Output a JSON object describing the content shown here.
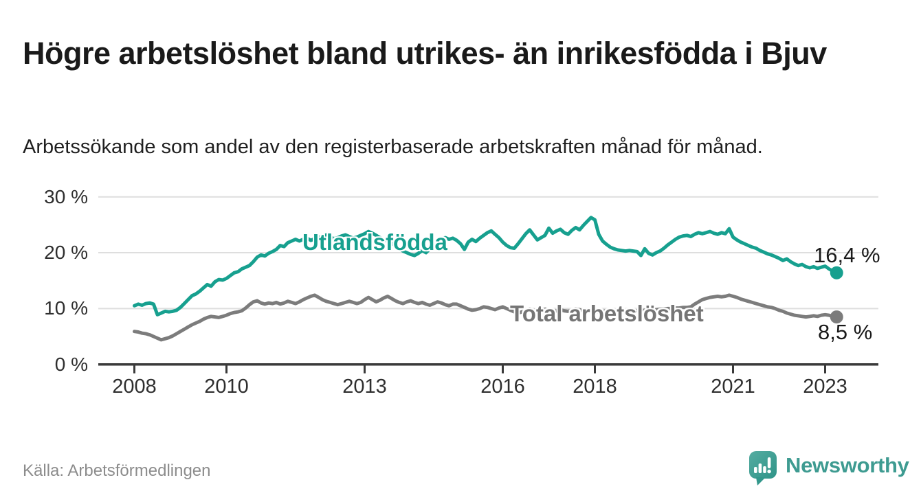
{
  "header": {
    "title": "Högre arbetslöshet bland utrikes- än inrikesfödda i Bjuv",
    "subtitle": "Arbetssökande som andel av den registerbaserade arbetskraften månad för månad."
  },
  "footer": {
    "source": "Källa: Arbetsförmedlingen",
    "logo_text": "Newsworthy",
    "logo_icon": "speech-bubble-bar-chart-icon"
  },
  "colors": {
    "foreign_born_line": "#17A08F",
    "total_line": "#7C7C7C",
    "grid": "#DEDEDE",
    "axis": "#3A3A3A",
    "text": "#1A1A1A",
    "muted_text": "#8C8C8C",
    "logo_teal": "#3E9B91"
  },
  "chart_data": {
    "type": "line",
    "x_unit": "month",
    "x_start": "2008-01",
    "x_end": "2023-04",
    "ylim": [
      0,
      30
    ],
    "grid": "horizontal-only",
    "y_ticks": [
      0,
      10,
      20,
      30
    ],
    "y_tick_labels": [
      "0 %",
      "10 %",
      "20 %",
      "30 %"
    ],
    "x_tick_years": [
      2008,
      2010,
      2013,
      2016,
      2018,
      2021,
      2023
    ],
    "x_tick_labels": [
      "2008",
      "2010",
      "2013",
      "2016",
      "2018",
      "2021",
      "2023"
    ],
    "series": [
      {
        "name": "Utlandsfödda",
        "color": "#17A08F",
        "end_value": 16.4,
        "end_label": "16,4 %",
        "values": [
          10.5,
          10.8,
          10.6,
          10.9,
          11.0,
          10.8,
          8.9,
          9.2,
          9.5,
          9.4,
          9.5,
          9.7,
          10.2,
          10.9,
          11.6,
          12.3,
          12.6,
          13.1,
          13.7,
          14.3,
          14.0,
          14.8,
          15.2,
          15.1,
          15.4,
          15.9,
          16.4,
          16.6,
          17.1,
          17.4,
          17.7,
          18.4,
          19.2,
          19.6,
          19.4,
          19.9,
          20.2,
          20.6,
          21.3,
          21.1,
          21.8,
          22.1,
          22.4,
          22.1,
          22.4,
          22.6,
          22.2,
          22.5,
          22.7,
          22.9,
          23.2,
          22.8,
          22.5,
          22.7,
          23.0,
          23.2,
          22.9,
          22.6,
          22.8,
          23.1,
          23.4,
          23.8,
          23.5,
          23.1,
          22.7,
          22.4,
          22.1,
          21.7,
          21.3,
          20.8,
          20.3,
          20.0,
          19.7,
          19.5,
          19.9,
          20.4,
          20.0,
          20.7,
          21.3,
          21.9,
          22.4,
          22.7,
          22.4,
          22.6,
          22.2,
          21.6,
          20.6,
          21.9,
          22.4,
          22.0,
          22.6,
          23.1,
          23.6,
          23.9,
          23.3,
          22.7,
          21.9,
          21.3,
          20.9,
          20.8,
          21.6,
          22.5,
          23.4,
          24.1,
          23.2,
          22.3,
          22.7,
          23.1,
          24.4,
          23.5,
          23.9,
          24.2,
          23.6,
          23.3,
          24.0,
          24.5,
          24.1,
          24.9,
          25.6,
          26.3,
          25.9,
          23.3,
          22.1,
          21.5,
          21.0,
          20.7,
          20.5,
          20.4,
          20.3,
          20.4,
          20.3,
          20.2,
          19.5,
          20.7,
          19.9,
          19.6,
          20.0,
          20.3,
          20.8,
          21.4,
          21.9,
          22.4,
          22.8,
          23.0,
          23.1,
          22.9,
          23.3,
          23.6,
          23.4,
          23.6,
          23.8,
          23.5,
          23.3,
          23.6,
          23.4,
          24.3,
          22.8,
          22.3,
          21.9,
          21.6,
          21.3,
          21.0,
          20.8,
          20.4,
          20.1,
          19.8,
          19.6,
          19.3,
          19.0,
          18.6,
          18.9,
          18.4,
          18.0,
          17.7,
          17.9,
          17.5,
          17.3,
          17.5,
          17.2,
          17.4,
          17.6,
          17.1,
          16.7,
          16.4
        ]
      },
      {
        "name": "Total arbetslöshet",
        "color": "#7C7C7C",
        "end_value": 8.5,
        "end_label": "8,5 %",
        "values": [
          5.9,
          5.8,
          5.6,
          5.5,
          5.3,
          5.0,
          4.7,
          4.4,
          4.6,
          4.8,
          5.1,
          5.5,
          5.9,
          6.3,
          6.7,
          7.1,
          7.4,
          7.7,
          8.1,
          8.4,
          8.6,
          8.5,
          8.4,
          8.6,
          8.8,
          9.1,
          9.3,
          9.4,
          9.6,
          10.1,
          10.7,
          11.2,
          11.4,
          11.0,
          10.8,
          11.0,
          10.9,
          11.1,
          10.8,
          11.0,
          11.3,
          11.1,
          10.9,
          11.2,
          11.6,
          11.9,
          12.2,
          12.4,
          12.0,
          11.6,
          11.3,
          11.1,
          10.9,
          10.7,
          10.9,
          11.1,
          11.3,
          11.1,
          10.9,
          11.1,
          11.6,
          12.0,
          11.6,
          11.2,
          11.5,
          11.9,
          12.2,
          11.8,
          11.4,
          11.1,
          10.9,
          11.2,
          11.4,
          11.1,
          10.9,
          11.1,
          10.8,
          10.6,
          10.9,
          11.2,
          11.0,
          10.7,
          10.5,
          10.8,
          10.8,
          10.5,
          10.2,
          9.9,
          9.7,
          9.8,
          10.0,
          10.3,
          10.2,
          10.0,
          9.8,
          10.1,
          10.3,
          10.0,
          9.7,
          9.4,
          9.2,
          9.4,
          9.6,
          9.9,
          9.7,
          9.5,
          9.7,
          9.9,
          9.7,
          9.5,
          9.6,
          9.8,
          9.6,
          9.5,
          9.7,
          9.9,
          9.8,
          9.6,
          9.5,
          9.6,
          9.5,
          9.4,
          9.5,
          9.6,
          9.5,
          9.4,
          9.5,
          9.6,
          9.5,
          9.4,
          9.5,
          9.6,
          9.6,
          9.7,
          9.7,
          9.8,
          9.8,
          9.9,
          9.9,
          10.0,
          10.0,
          10.1,
          10.1,
          10.2,
          10.2,
          10.3,
          10.8,
          11.2,
          11.6,
          11.8,
          12.0,
          12.1,
          12.2,
          12.1,
          12.2,
          12.4,
          12.2,
          12.0,
          11.7,
          11.5,
          11.3,
          11.1,
          10.9,
          10.7,
          10.5,
          10.3,
          10.2,
          10.0,
          9.7,
          9.5,
          9.2,
          9.0,
          8.8,
          8.7,
          8.6,
          8.5,
          8.6,
          8.7,
          8.6,
          8.8,
          8.9,
          8.8,
          8.6,
          8.5
        ]
      }
    ]
  }
}
